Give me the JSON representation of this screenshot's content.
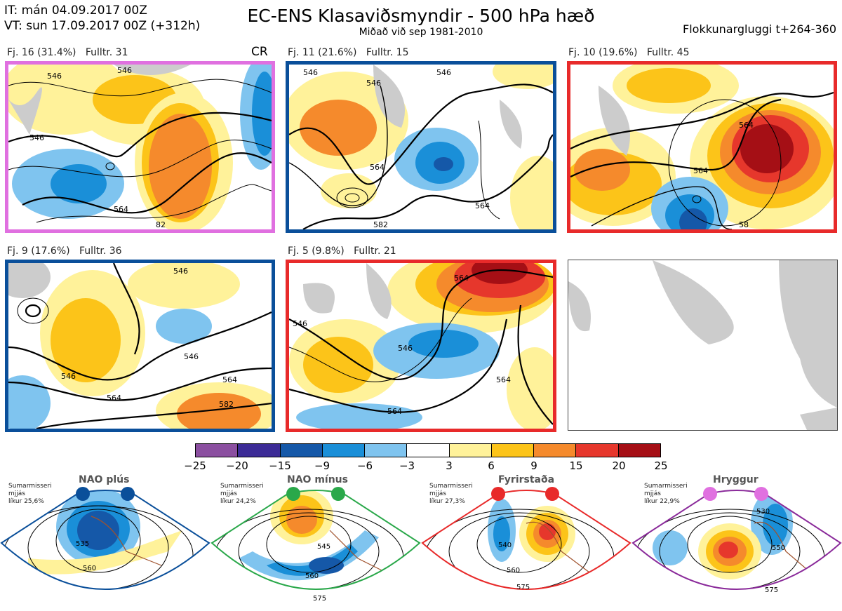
{
  "header": {
    "it": "IT: mán 04.09.2017 00Z",
    "vt": "VT: sun 17.09.2017 00Z  (+312h)",
    "title": "EC-ENS Klasaviðsmyndir - 500 hPa hæð",
    "subtitle": "Miðað við sep 1981-2010",
    "window": "Flokkunargluggi t+264-360"
  },
  "panels": [
    {
      "label": "Fj. 16 (31.4%)",
      "member": "Fulltr. 31",
      "extra": "CR",
      "border": "#e070e0"
    },
    {
      "label": "Fj. 11 (21.6%)",
      "member": "Fulltr. 15",
      "border": "#0a4f9a"
    },
    {
      "label": "Fj. 10 (19.6%)",
      "member": "Fulltr. 45",
      "border": "#e82a2a"
    },
    {
      "label": "Fj. 9 (17.6%)",
      "member": "Fulltr. 36",
      "border": "#0a4f9a"
    },
    {
      "label": "Fj. 5 (9.8%)",
      "member": "Fulltr. 21",
      "border": "#e82a2a"
    }
  ],
  "contours": {
    "p1": [
      "546",
      "546",
      "546",
      "564",
      "82"
    ],
    "p2": [
      "546",
      "546",
      "546",
      "564",
      "564",
      "582"
    ],
    "p3": [
      "564",
      "564",
      "58"
    ],
    "p4": [
      "546",
      "546",
      "564",
      "582",
      "546",
      "564"
    ],
    "p5": [
      "546",
      "546",
      "564",
      "564",
      "564"
    ]
  },
  "colorbar": {
    "colors": [
      "#8b4fa0",
      "#3c2b96",
      "#1558a8",
      "#1a8fd8",
      "#7fc4ef",
      "#ffffff",
      "#fff29a",
      "#fcc419",
      "#f58a2c",
      "#e6372c",
      "#a50f15"
    ],
    "ticks": [
      "−25",
      "−20",
      "−15",
      "−9",
      "−6",
      "−3",
      "3",
      "6",
      "9",
      "15",
      "20",
      "25"
    ]
  },
  "regimes": [
    {
      "name": "NAO plús",
      "season": "Sumarmisseri",
      "smooth": "mjjás",
      "prob": "líkur 25,6%",
      "color": "#0a4f9a",
      "labels": [
        "535",
        "560"
      ]
    },
    {
      "name": "NAO mínus",
      "season": "Sumarmisseri",
      "smooth": "mjjás",
      "prob": "líkur 24,2%",
      "color": "#2aa84a",
      "labels": [
        "545",
        "560",
        "575"
      ]
    },
    {
      "name": "Fyrirstaða",
      "season": "Sumarmisseri",
      "smooth": "mjjás",
      "prob": "líkur 27,3%",
      "color": "#e82a2a",
      "labels": [
        "540",
        "560",
        "575"
      ]
    },
    {
      "name": "Hryggur",
      "season": "Sumarmisseri",
      "smooth": "mjjás",
      "prob": "líkur 22,9%",
      "color": "#8a2a9a",
      "labels": [
        "530",
        "550",
        "575"
      ]
    }
  ]
}
